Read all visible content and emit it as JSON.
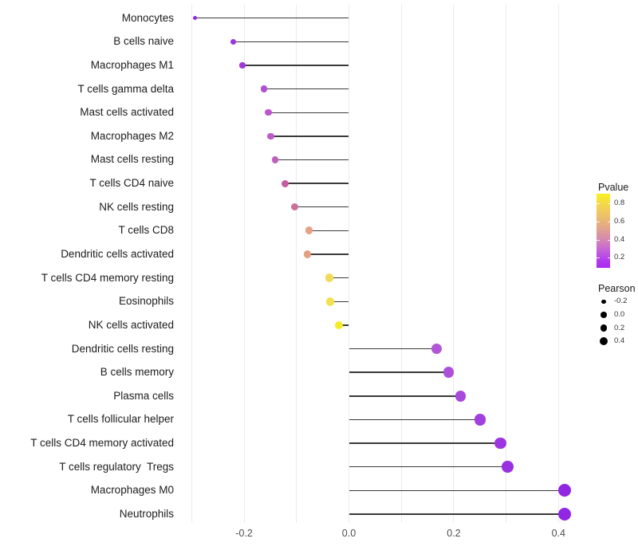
{
  "chart_data": {
    "type": "scatter",
    "subtype": "lollipop",
    "title": "",
    "xlabel": "",
    "ylabel": "",
    "xlim": [
      -0.31,
      0.45
    ],
    "x_ticks": {
      "values": [
        -0.2,
        0.0,
        0.2,
        0.4
      ],
      "labels": [
        "-0.2",
        "0.0",
        "0.2",
        "0.4"
      ]
    },
    "gridline_values": [
      -0.3,
      -0.2,
      -0.1,
      0.0,
      0.1,
      0.2,
      0.3,
      0.4
    ],
    "grid": "vertical-only",
    "baseline": 0.0,
    "categories": [
      "Monocytes",
      "B cells naive",
      "Macrophages M1",
      "T cells gamma delta",
      "Mast cells activated",
      "Macrophages M2",
      "Mast cells resting",
      "T cells CD4 naive",
      "NK cells resting",
      "T cells CD8",
      "Dendritic cells activated",
      "T cells CD4 memory resting",
      "Eosinophils",
      "NK cells activated",
      "Dendritic cells resting",
      "B cells memory",
      "Plasma cells",
      "T cells follicular helper",
      "T cells CD4 memory activated",
      "T cells regulatory  Tregs",
      "Macrophages M0",
      "Neutrophils"
    ],
    "series": [
      {
        "name": "Pearson",
        "values": [
          -0.293,
          -0.221,
          -0.203,
          -0.162,
          -0.154,
          -0.149,
          -0.141,
          -0.122,
          -0.103,
          -0.076,
          -0.079,
          -0.037,
          -0.036,
          -0.019,
          0.167,
          0.19,
          0.213,
          0.25,
          0.289,
          0.303,
          0.412,
          0.412
        ]
      }
    ],
    "point_colors": [
      "#9429e0",
      "#9d33dd",
      "#a138d9",
      "#b24fd2",
      "#ba57cb",
      "#bd5ac7",
      "#c05fc0",
      "#c75aa3",
      "#cd7099",
      "#e8a184",
      "#e59e80",
      "#f1dc59",
      "#f3e050",
      "#f6ec26",
      "#b156d7",
      "#ad4fd9",
      "#a848dc",
      "#a23fde",
      "#9d35e0",
      "#9a31e1",
      "#9227e3",
      "#9227e3"
    ],
    "pvalue_approx": [
      0.1,
      0.13,
      0.15,
      0.25,
      0.28,
      0.29,
      0.31,
      0.38,
      0.44,
      0.56,
      0.55,
      0.76,
      0.78,
      0.85,
      0.24,
      0.22,
      0.19,
      0.16,
      0.13,
      0.12,
      0.09,
      0.09
    ],
    "legend": {
      "pvalue": {
        "title": "Pvalue",
        "tick_labels": [
          "0.8",
          "0.6",
          "0.4",
          "0.2"
        ],
        "gradient_top_to_bottom": [
          "#faf021",
          "#f4d84b",
          "#edc06b",
          "#e2a589",
          "#d587b3",
          "#c464d7",
          "#b23eeb",
          "#a92af0"
        ],
        "gradient_stop_pcts": [
          0,
          14,
          30,
          46,
          62,
          76,
          89,
          100
        ]
      },
      "pearson": {
        "title": "Pearson",
        "tick_labels": [
          "-0.2",
          "0.0",
          "0.2",
          "0.4"
        ]
      }
    },
    "colors": {
      "stem": "#3a3a3a",
      "grid": "#ebebeb",
      "axis_text": "#4d4d4d",
      "label_text": "#1c1c1c",
      "legend_dot": "#000000",
      "background": "#ffffff"
    }
  }
}
